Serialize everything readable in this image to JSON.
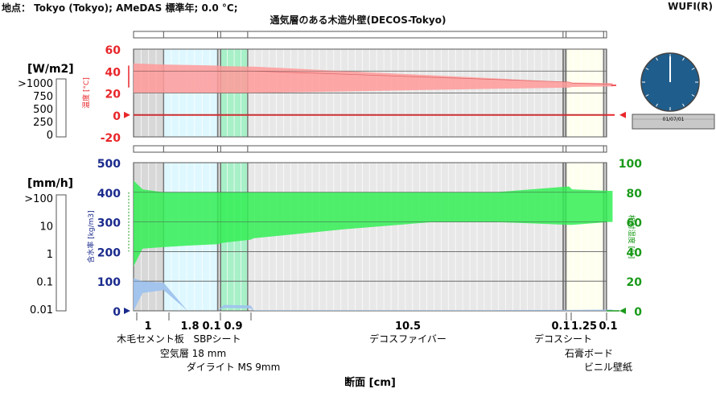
{
  "header": {
    "location": "地点： Tokyo (Tokyo); AMeDAS 標準年; 0.0 °C;",
    "title": "通気層のある木造外壁(DECOS-Tokyo)",
    "brand": "WUFI(R)"
  },
  "clock": {
    "date": "01/07/01"
  },
  "colors": {
    "temperature": "#e8262a",
    "temp_band": "#ff9a9a",
    "rh": "#1a9a1a",
    "rh_band": "#33ee55",
    "water_content": "#1a2a8c",
    "wc_band": "#9fc3ee",
    "clock_face": "#1f5d8c"
  },
  "left_scales": {
    "radiation": {
      "unit": "[W/m2]",
      "ticks": [
        ">1000",
        "750",
        "500",
        "250",
        "0"
      ]
    },
    "rain": {
      "unit": "[mm/h]",
      "ticks": [
        ">100",
        "10",
        "1",
        "0.1",
        "0.01"
      ]
    }
  },
  "chart_data": [
    {
      "type": "area",
      "name": "temperature-profile",
      "ylabel": "温度 [°C]",
      "ylim": [
        -20,
        60
      ],
      "yticks": [
        60,
        40,
        20,
        0,
        -20
      ],
      "x": [
        0,
        1,
        2.8,
        3.0,
        3.9,
        4.0,
        14.5,
        14.6,
        15.85,
        15.95
      ],
      "band_upper": [
        47,
        46,
        45,
        44.5,
        44,
        44,
        30,
        29.5,
        29,
        29
      ],
      "band_lower": [
        20,
        20,
        20,
        20,
        20,
        20,
        25,
        25.5,
        26,
        26
      ],
      "mean": [
        40,
        40,
        40,
        40,
        40,
        40,
        30,
        29,
        28,
        27
      ],
      "reference_line": 0
    },
    {
      "type": "area",
      "name": "moisture-profile",
      "ylabel_left": "含水率 [kg/m3]",
      "ylabel_right": "相対湿度 [%]",
      "ylim_left": [
        0,
        500
      ],
      "yticks_left": [
        500,
        400,
        300,
        200,
        100,
        0
      ],
      "ylim_right": [
        0,
        100
      ],
      "yticks_right": [
        100,
        80,
        60,
        40,
        20,
        0
      ],
      "x": [
        0,
        0.3,
        1,
        1.8,
        2.8,
        3.0,
        3.9,
        4.0,
        7,
        10,
        12,
        14.5,
        14.6,
        15.85,
        15.95
      ],
      "rh_upper": [
        88,
        82,
        80,
        80,
        80,
        80,
        80,
        80,
        80,
        80,
        80,
        84,
        82,
        81,
        81
      ],
      "rh_lower": [
        30,
        42,
        43,
        44,
        45,
        46,
        48,
        49,
        55,
        60,
        60,
        58,
        58,
        60,
        60
      ],
      "wc_upper": [
        110,
        100,
        95,
        0,
        0,
        20,
        18,
        2,
        2,
        2,
        2,
        3,
        3,
        4,
        4
      ],
      "wc_lower": [
        0,
        60,
        70,
        0,
        0,
        10,
        8,
        0,
        0,
        0,
        0,
        0,
        0,
        0,
        0
      ]
    }
  ],
  "xaxis": {
    "label": "断面 [cm]",
    "thicknesses": [
      "1",
      "1.8",
      "0.1",
      "0.9",
      "10.5",
      "0.1",
      "1.25",
      "0.1"
    ],
    "layers": [
      {
        "name": "木毛セメント板",
        "thickness": 1.0,
        "color": "#d8d8d8"
      },
      {
        "name": "空気層 18 mm",
        "thickness": 1.8,
        "color": "#dff8ff"
      },
      {
        "name": "SBPシート",
        "thickness": 0.1,
        "color": "#b8b8b8"
      },
      {
        "name": "ダイライト MS 9mm",
        "thickness": 0.9,
        "color": "#a8f0c8"
      },
      {
        "name": "デコスファイバー",
        "thickness": 10.5,
        "color": "#e8e8e8"
      },
      {
        "name": "デコスシート",
        "thickness": 0.1,
        "color": "#888888"
      },
      {
        "name": "石膏ボード",
        "thickness": 1.25,
        "color": "#fffff0"
      },
      {
        "name": "ビニル壁紙",
        "thickness": 0.1,
        "color": "#b0b0b0"
      }
    ]
  }
}
